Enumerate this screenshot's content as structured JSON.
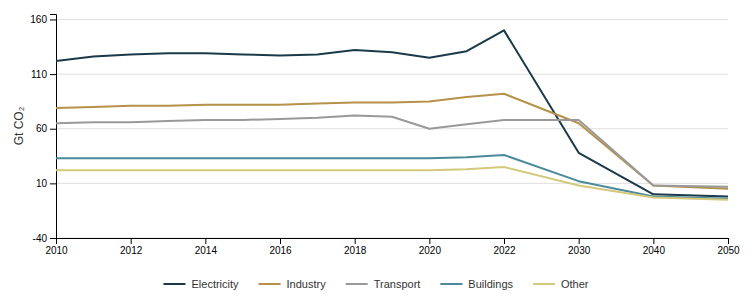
{
  "chart_data": {
    "type": "line",
    "y_label": "Gt CO₂",
    "x": [
      2010,
      2011,
      2012,
      2013,
      2014,
      2015,
      2016,
      2017,
      2018,
      2019,
      2020,
      2021,
      2022,
      2030,
      2040,
      2050
    ],
    "series": [
      {
        "name": "Electricity",
        "color": "#1a3a4a",
        "values": [
          122,
          126,
          128,
          129,
          129,
          128,
          127,
          128,
          132,
          130,
          125,
          131,
          150,
          38,
          0,
          -2
        ]
      },
      {
        "name": "Industry",
        "color": "#b5914a",
        "values": [
          79,
          80,
          81,
          81,
          82,
          82,
          82,
          83,
          84,
          84,
          85,
          89,
          92,
          65,
          8,
          5
        ]
      },
      {
        "name": "Transport",
        "color": "#999999",
        "values": [
          65,
          66,
          66,
          67,
          68,
          68,
          69,
          70,
          72,
          71,
          60,
          64,
          68,
          68,
          8,
          7
        ]
      },
      {
        "name": "Buildings",
        "color": "#4a8a9a",
        "values": [
          33,
          33,
          33,
          33,
          33,
          33,
          33,
          33,
          33,
          33,
          33,
          34,
          36,
          12,
          -2,
          -4
        ]
      },
      {
        "name": "Other",
        "color": "#d4c87a",
        "values": [
          22,
          22,
          22,
          22,
          22,
          22,
          22,
          22,
          22,
          22,
          22,
          23,
          25,
          8,
          -3,
          -5
        ]
      }
    ],
    "xlim": [
      2010,
      2050
    ],
    "xticks": [
      2010,
      2012,
      2014,
      2016,
      2018,
      2020,
      2022,
      2030,
      2040,
      2050
    ],
    "ylim": [
      -40,
      165
    ],
    "yticks": [
      -40,
      10,
      60,
      110,
      160
    ],
    "grid": true,
    "legend": "bottom"
  }
}
